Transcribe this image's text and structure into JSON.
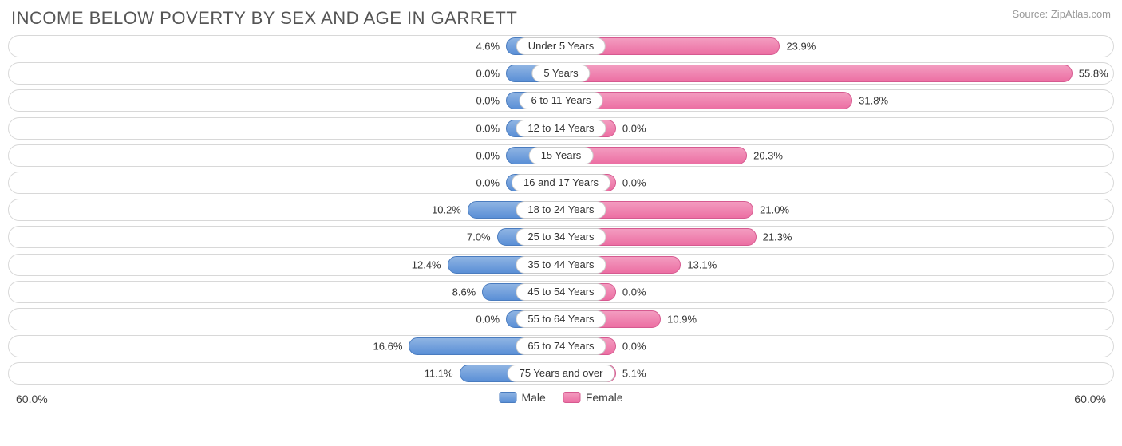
{
  "title": "INCOME BELOW POVERTY BY SEX AND AGE IN GARRETT",
  "source": "Source: ZipAtlas.com",
  "axis_max_pct": 60.0,
  "axis_max_label_left": "60.0%",
  "axis_max_label_right": "60.0%",
  "min_bar_pct": 6.0,
  "legend": {
    "male": "Male",
    "female": "Female"
  },
  "colors": {
    "male_fill_top": "#8fb4e3",
    "male_fill_bottom": "#5a8fd6",
    "male_border": "#4a7cbf",
    "female_fill_top": "#f39cc0",
    "female_fill_bottom": "#ec6fa3",
    "female_border": "#d65a90",
    "row_border": "#d8d8d8",
    "title_color": "#555555",
    "source_color": "#9a9a9a",
    "text_color": "#333333",
    "background": "#ffffff"
  },
  "typography": {
    "title_fontsize": 22,
    "label_fontsize": 13,
    "legend_fontsize": 14,
    "font_family": "Arial"
  },
  "rows": [
    {
      "category": "Under 5 Years",
      "male": 4.6,
      "female": 23.9,
      "male_label": "4.6%",
      "female_label": "23.9%"
    },
    {
      "category": "5 Years",
      "male": 0.0,
      "female": 55.8,
      "male_label": "0.0%",
      "female_label": "55.8%"
    },
    {
      "category": "6 to 11 Years",
      "male": 0.0,
      "female": 31.8,
      "male_label": "0.0%",
      "female_label": "31.8%"
    },
    {
      "category": "12 to 14 Years",
      "male": 0.0,
      "female": 0.0,
      "male_label": "0.0%",
      "female_label": "0.0%"
    },
    {
      "category": "15 Years",
      "male": 0.0,
      "female": 20.3,
      "male_label": "0.0%",
      "female_label": "20.3%"
    },
    {
      "category": "16 and 17 Years",
      "male": 0.0,
      "female": 0.0,
      "male_label": "0.0%",
      "female_label": "0.0%"
    },
    {
      "category": "18 to 24 Years",
      "male": 10.2,
      "female": 21.0,
      "male_label": "10.2%",
      "female_label": "21.0%"
    },
    {
      "category": "25 to 34 Years",
      "male": 7.0,
      "female": 21.3,
      "male_label": "7.0%",
      "female_label": "21.3%"
    },
    {
      "category": "35 to 44 Years",
      "male": 12.4,
      "female": 13.1,
      "male_label": "12.4%",
      "female_label": "13.1%"
    },
    {
      "category": "45 to 54 Years",
      "male": 8.6,
      "female": 0.0,
      "male_label": "8.6%",
      "female_label": "0.0%"
    },
    {
      "category": "55 to 64 Years",
      "male": 0.0,
      "female": 10.9,
      "male_label": "0.0%",
      "female_label": "10.9%"
    },
    {
      "category": "65 to 74 Years",
      "male": 16.6,
      "female": 0.0,
      "male_label": "16.6%",
      "female_label": "0.0%"
    },
    {
      "category": "75 Years and over",
      "male": 11.1,
      "female": 5.1,
      "male_label": "11.1%",
      "female_label": "5.1%"
    }
  ]
}
